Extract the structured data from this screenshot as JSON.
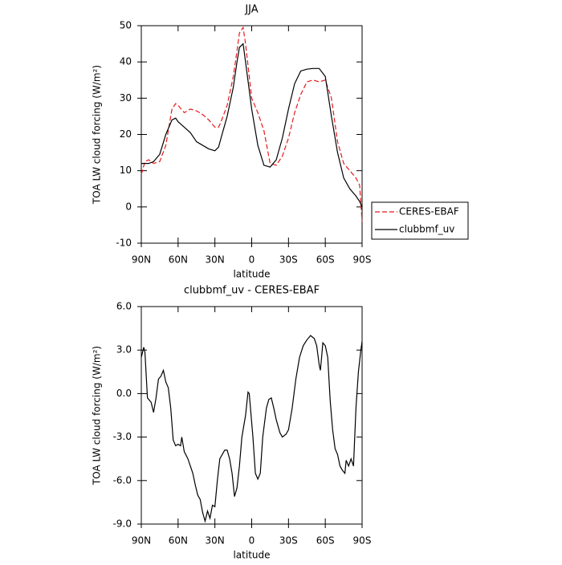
{
  "chart_data": [
    {
      "type": "line",
      "title": "JJA",
      "x_label": "latitude",
      "y_label": "TOA LW cloud forcing (W/m²)",
      "x": [
        90,
        87,
        84,
        80,
        75,
        70,
        65,
        62,
        60,
        55,
        50,
        45,
        40,
        35,
        30,
        27,
        25,
        20,
        15,
        12,
        10,
        7,
        5,
        0,
        -5,
        -10,
        -15,
        -20,
        -25,
        -30,
        -35,
        -40,
        -45,
        -50,
        -55,
        -60,
        -65,
        -70,
        -75,
        -80,
        -85,
        -88,
        -90
      ],
      "series": [
        {
          "name": "CERES-EBAF",
          "color": "#e41a1c",
          "dash": true,
          "values": [
            9,
            12.5,
            13,
            12,
            12.5,
            17,
            27,
            28.5,
            28,
            26,
            27,
            26.5,
            25.5,
            24,
            22,
            22,
            23.5,
            28,
            36,
            43,
            48,
            49.5,
            45,
            30,
            26,
            21,
            12,
            11.5,
            14,
            19,
            26,
            31,
            34.5,
            35,
            34.5,
            35,
            30,
            18,
            12,
            10,
            8,
            6,
            -4
          ]
        },
        {
          "name": "clubbmf_uv",
          "color": "#000000",
          "dash": false,
          "values": [
            12,
            12,
            12,
            12.5,
            14.5,
            20,
            24,
            24.5,
            23.5,
            22,
            20.5,
            18,
            17,
            16,
            15.5,
            16.5,
            19,
            25,
            33,
            40,
            44,
            45,
            40,
            27,
            17,
            11.5,
            11,
            13,
            19,
            27,
            34,
            37.5,
            38,
            38.2,
            38.2,
            36,
            25,
            15,
            8,
            5,
            3,
            1.5,
            0
          ]
        }
      ],
      "xlim": [
        90,
        -90
      ],
      "xticks": [
        {
          "value": 90,
          "label": "90N"
        },
        {
          "value": 60,
          "label": "60N"
        },
        {
          "value": 30,
          "label": "30N"
        },
        0,
        {
          "value": -30,
          "label": "30S"
        },
        {
          "value": -60,
          "label": "60S"
        },
        {
          "value": -90,
          "label": "90S"
        }
      ],
      "ylim": [
        -10,
        50
      ],
      "yticks": [
        -10,
        0,
        10,
        20,
        30,
        40,
        50
      ],
      "legend": "right-outside"
    },
    {
      "type": "line",
      "title": "clubbmf_uv - CERES-EBAF",
      "x_label": "latitude",
      "y_label": "TOA LW cloud forcing (W/m²)",
      "x": [
        90,
        88,
        87,
        85,
        82,
        80,
        78,
        76,
        74,
        72,
        70,
        68,
        66,
        64,
        62,
        60,
        58,
        57,
        55,
        52,
        50,
        48,
        46,
        44,
        42,
        40,
        38,
        36,
        34,
        32,
        30,
        28,
        26,
        24,
        22,
        20,
        18,
        16,
        14,
        12,
        10,
        8,
        5,
        3,
        2,
        1,
        -1,
        -3,
        -5,
        -7,
        -9,
        -12,
        -14,
        -16,
        -18,
        -20,
        -23,
        -25,
        -28,
        -30,
        -33,
        -36,
        -39,
        -42,
        -45,
        -48,
        -51,
        -53,
        -55,
        -56,
        -57,
        -58,
        -60,
        -62,
        -64,
        -66,
        -68,
        -70,
        -72,
        -74,
        -76,
        -77,
        -79,
        -81,
        -83,
        -85,
        -87,
        -89,
        -90
      ],
      "series": [
        {
          "name": "clubbmf_uv - CERES-EBAF",
          "color": "#000000",
          "dash": false,
          "values": [
            2.5,
            3.2,
            2.8,
            -0.3,
            -0.6,
            -1.3,
            -0.3,
            1.0,
            1.2,
            1.6,
            0.8,
            0.4,
            -1.0,
            -3.2,
            -3.6,
            -3.5,
            -3.6,
            -3.0,
            -4.0,
            -4.5,
            -5.0,
            -5.5,
            -6.3,
            -7.0,
            -7.3,
            -8.2,
            -8.8,
            -8.1,
            -8.6,
            -7.7,
            -7.8,
            -6.0,
            -4.5,
            -4.2,
            -3.9,
            -3.9,
            -4.5,
            -5.5,
            -7.1,
            -6.5,
            -5.0,
            -3.0,
            -1.5,
            0.1,
            0.0,
            -1.0,
            -3.0,
            -5.5,
            -5.9,
            -5.5,
            -3.0,
            -1.0,
            -0.4,
            -0.3,
            -1.0,
            -1.8,
            -2.7,
            -3.0,
            -2.8,
            -2.5,
            -1.0,
            1.0,
            2.5,
            3.3,
            3.7,
            4.0,
            3.8,
            3.3,
            2.0,
            1.6,
            2.5,
            3.5,
            3.3,
            2.5,
            -0.5,
            -2.5,
            -3.8,
            -4.2,
            -5.0,
            -5.3,
            -5.5,
            -4.6,
            -5.0,
            -4.5,
            -5.0,
            -1.0,
            1.5,
            3.0,
            3.6
          ]
        }
      ],
      "xlim": [
        90,
        -90
      ],
      "xticks": [
        {
          "value": 90,
          "label": "90N"
        },
        {
          "value": 60,
          "label": "60N"
        },
        {
          "value": 30,
          "label": "30N"
        },
        0,
        {
          "value": -30,
          "label": "30S"
        },
        {
          "value": -60,
          "label": "60S"
        },
        {
          "value": -90,
          "label": "90S"
        }
      ],
      "ylim": [
        -9,
        6
      ],
      "yticks": [
        {
          "value": -9,
          "label": "-9.0"
        },
        {
          "value": -6,
          "label": "-6.0"
        },
        {
          "value": -3,
          "label": "-3.0"
        },
        {
          "value": 0,
          "label": "0.0"
        },
        {
          "value": 3,
          "label": "3.0"
        },
        {
          "value": 6,
          "label": "6.0"
        }
      ],
      "legend": "none"
    }
  ]
}
